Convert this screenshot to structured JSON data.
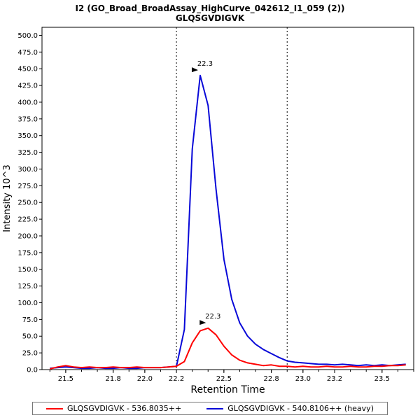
{
  "title": {
    "line1": "I2 (GO_Broad_BroadAssay_HighCurve_042612_I1_059 (2))",
    "line2": "GLQSGVDIGVK"
  },
  "chart_data": {
    "type": "line",
    "title": "I2 (GO_Broad_BroadAssay_HighCurve_042612_I1_059 (2)) GLQSGVDIGVK",
    "xlabel": "Retention Time",
    "ylabel": "Intensity 10^3",
    "xlim": [
      21.35,
      23.7
    ],
    "ylim": [
      0,
      512
    ],
    "x_ticks": [
      21.5,
      21.8,
      22.0,
      22.2,
      22.5,
      22.8,
      23.0,
      23.2,
      23.5
    ],
    "y_tick_min": 0,
    "y_tick_max": 500,
    "y_tick_step": 25,
    "grid": false,
    "legend_position": "bottom",
    "integration_boundaries": [
      22.2,
      22.9
    ],
    "boundary_color": "#000000",
    "x": [
      21.4,
      21.45,
      21.5,
      21.55,
      21.6,
      21.65,
      21.7,
      21.75,
      21.8,
      21.85,
      21.9,
      21.95,
      22.0,
      22.05,
      22.1,
      22.15,
      22.2,
      22.25,
      22.3,
      22.35,
      22.4,
      22.45,
      22.5,
      22.55,
      22.6,
      22.65,
      22.7,
      22.75,
      22.8,
      22.85,
      22.9,
      22.95,
      23.0,
      23.05,
      23.1,
      23.15,
      23.2,
      23.25,
      23.3,
      23.35,
      23.4,
      23.45,
      23.5,
      23.55,
      23.6,
      23.65
    ],
    "series": [
      {
        "name": "GLQSGVDIGVK - 536.8035++",
        "color": "#ff0000",
        "values": [
          1,
          4,
          6,
          4,
          3,
          4,
          3,
          3,
          4,
          3,
          3,
          4,
          3,
          3,
          3,
          4,
          5,
          12,
          40,
          58,
          62,
          52,
          35,
          22,
          14,
          10,
          8,
          6,
          7,
          5,
          5,
          4,
          5,
          4,
          4,
          5,
          4,
          4,
          5,
          4,
          4,
          5,
          5,
          6,
          6,
          7
        ],
        "annotation": {
          "x": 22.4,
          "y": 70,
          "label": "22.3"
        }
      },
      {
        "name": "GLQSGVDIGVK - 540.8106++ (heavy)",
        "color": "#0808d8",
        "values": [
          2,
          3,
          4,
          3,
          2,
          2,
          3,
          2,
          2,
          3,
          2,
          2,
          3,
          3,
          3,
          4,
          5,
          60,
          330,
          440,
          395,
          270,
          165,
          105,
          70,
          50,
          38,
          30,
          24,
          18,
          13,
          11,
          10,
          9,
          8,
          8,
          7,
          8,
          7,
          6,
          7,
          6,
          7,
          6,
          7,
          8
        ],
        "annotation": {
          "x": 22.35,
          "y": 448,
          "label": "22.3"
        }
      }
    ]
  }
}
